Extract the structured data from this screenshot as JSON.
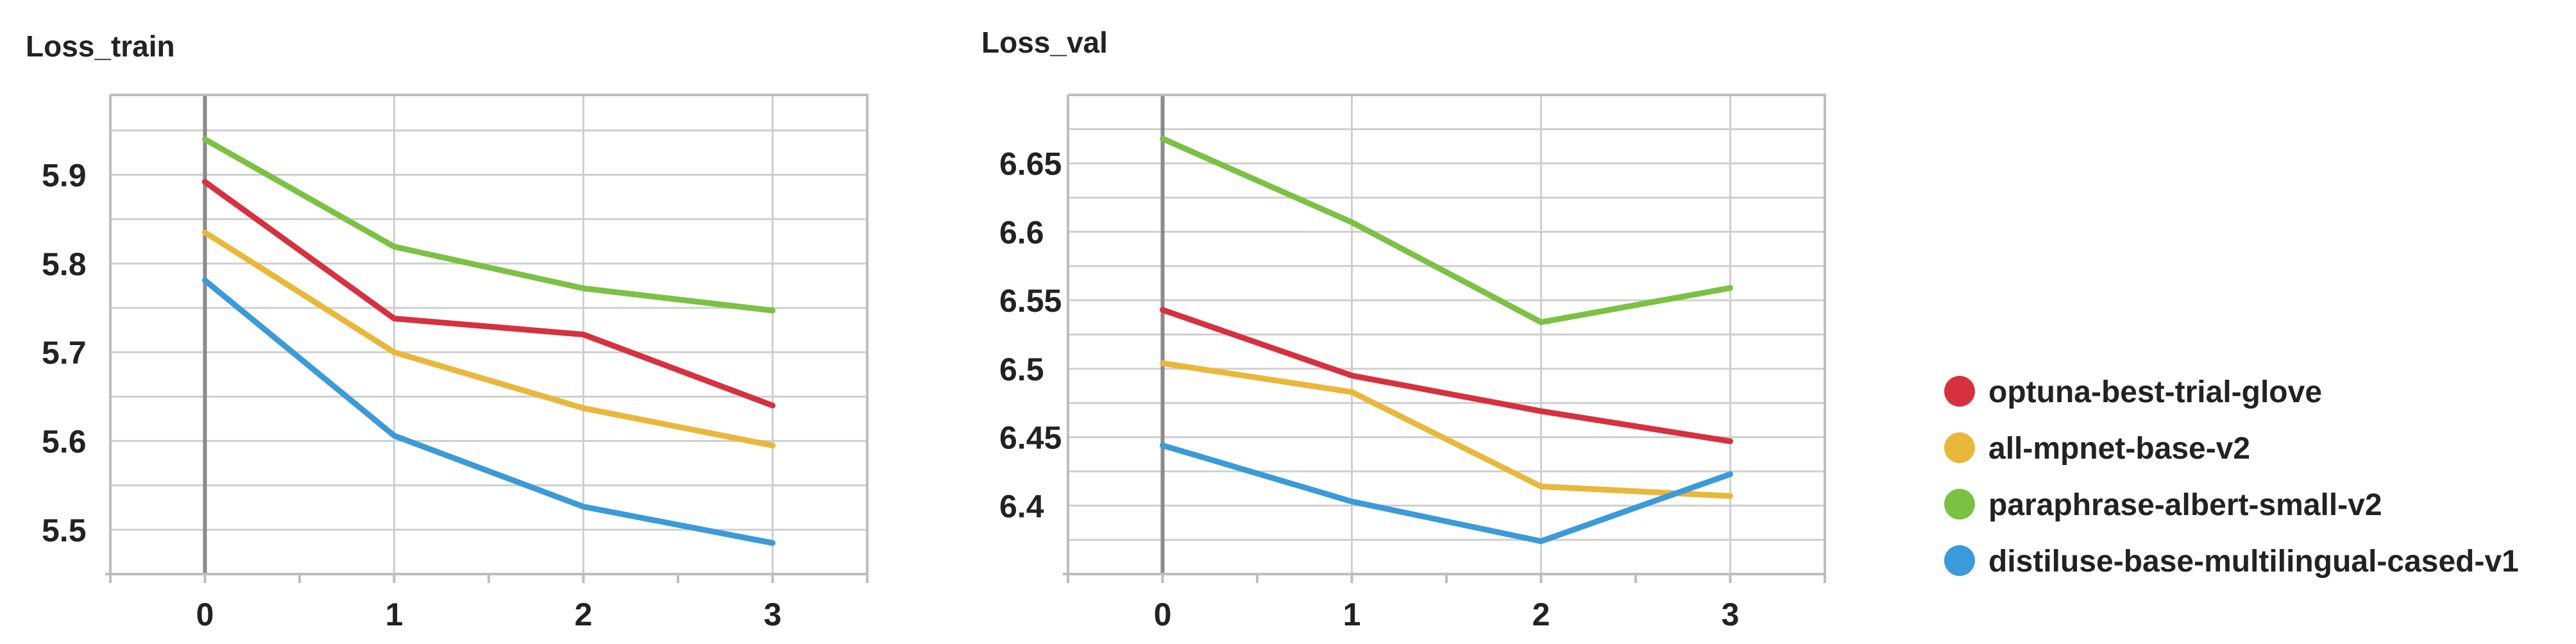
{
  "chart_data": [
    {
      "type": "line",
      "title": "Loss_train",
      "x": [
        0,
        1,
        2,
        3
      ],
      "xlim": [
        -0.5,
        3.5
      ],
      "ylim": [
        5.45,
        5.99
      ],
      "yticks": [
        5.5,
        5.6,
        5.7,
        5.8,
        5.9
      ],
      "ytick_labels": [
        "5.5",
        "5.6",
        "5.7",
        "5.8",
        "5.9"
      ],
      "xtick_labels": [
        "0",
        "1",
        "2",
        "3"
      ],
      "grid": true,
      "series": [
        {
          "name": "optuna-best-trial-glove",
          "color": "#d7303f",
          "values": [
            5.892,
            5.738,
            5.72,
            5.64
          ]
        },
        {
          "name": "all-mpnet-base-v2",
          "color": "#e9b73a",
          "values": [
            5.835,
            5.7,
            5.637,
            5.595
          ]
        },
        {
          "name": "paraphrase-albert-small-v2",
          "color": "#7bc143",
          "values": [
            5.94,
            5.819,
            5.772,
            5.747
          ]
        },
        {
          "name": "distiluse-base-multilingual-cased-v1",
          "color": "#3b9ad9",
          "values": [
            5.781,
            5.606,
            5.526,
            5.485
          ]
        }
      ]
    },
    {
      "type": "line",
      "title": "Loss_val",
      "x": [
        0,
        1,
        2,
        3
      ],
      "xlim": [
        -0.5,
        3.5
      ],
      "ylim": [
        6.35,
        6.7
      ],
      "yticks": [
        6.4,
        6.45,
        6.5,
        6.55,
        6.6,
        6.65
      ],
      "ytick_labels": [
        "6.4",
        "6.45",
        "6.5",
        "6.55",
        "6.6",
        "6.65"
      ],
      "xtick_labels": [
        "0",
        "1",
        "2",
        "3"
      ],
      "grid": true,
      "series": [
        {
          "name": "optuna-best-trial-glove",
          "color": "#d7303f",
          "values": [
            6.543,
            6.495,
            6.469,
            6.447
          ]
        },
        {
          "name": "all-mpnet-base-v2",
          "color": "#e9b73a",
          "values": [
            6.504,
            6.483,
            6.414,
            6.407
          ]
        },
        {
          "name": "paraphrase-albert-small-v2",
          "color": "#7bc143",
          "values": [
            6.668,
            6.607,
            6.534,
            6.559
          ]
        },
        {
          "name": "distiluse-base-multilingual-cased-v1",
          "color": "#3b9ad9",
          "values": [
            6.444,
            6.403,
            6.374,
            6.423
          ]
        }
      ]
    }
  ],
  "legend": {
    "position": "right",
    "items": [
      {
        "label": "optuna-best-trial-glove",
        "color": "#d7303f"
      },
      {
        "label": "all-mpnet-base-v2",
        "color": "#e9b73a"
      },
      {
        "label": "paraphrase-albert-small-v2",
        "color": "#7bc143"
      },
      {
        "label": "distiluse-base-multilingual-cased-v1",
        "color": "#3b9ad9"
      }
    ]
  }
}
